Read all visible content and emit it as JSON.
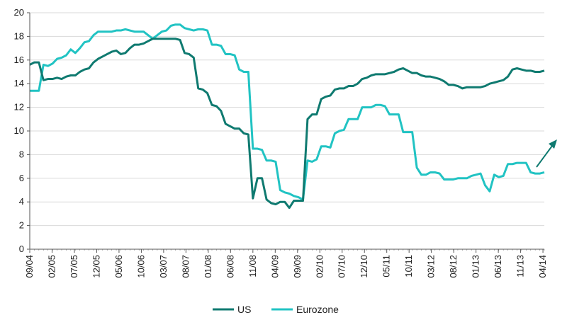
{
  "chart_data": {
    "type": "line",
    "title": "",
    "xlabel": "",
    "ylabel": "",
    "ylim": [
      0,
      20
    ],
    "yticks": [
      "0",
      "2",
      "4",
      "6",
      "8",
      "10",
      "12",
      "14",
      "16",
      "18",
      "20"
    ],
    "xticks": [
      "09/04",
      "02/05",
      "07/05",
      "12/05",
      "05/06",
      "10/06",
      "03/07",
      "08/07",
      "01/08",
      "06/08",
      "11/08",
      "04/09",
      "09/09",
      "02/10",
      "07/10",
      "12/10",
      "05/11",
      "10/11",
      "03/12",
      "08/12",
      "01/13",
      "06/13",
      "11/13",
      "04/14"
    ],
    "grid": "horizontal",
    "legend_position": "bottom",
    "colors": {
      "US": "#0f7a70",
      "Eurozone": "#21c3c3"
    },
    "series": [
      {
        "name": "US",
        "points": [
          [
            0,
            15.6
          ],
          [
            1,
            15.8
          ],
          [
            2,
            15.8
          ],
          [
            3,
            14.3
          ],
          [
            4,
            14.4
          ],
          [
            5,
            14.4
          ],
          [
            6,
            14.5
          ],
          [
            7,
            14.4
          ],
          [
            8,
            14.6
          ],
          [
            9,
            14.7
          ],
          [
            10,
            14.7
          ],
          [
            11,
            15.0
          ],
          [
            12,
            15.2
          ],
          [
            13,
            15.3
          ],
          [
            14,
            15.8
          ],
          [
            15,
            16.1
          ],
          [
            16,
            16.3
          ],
          [
            17,
            16.5
          ],
          [
            18,
            16.7
          ],
          [
            19,
            16.8
          ],
          [
            20,
            16.5
          ],
          [
            21,
            16.6
          ],
          [
            22,
            17.0
          ],
          [
            23,
            17.3
          ],
          [
            24,
            17.3
          ],
          [
            25,
            17.4
          ],
          [
            26,
            17.6
          ],
          [
            27,
            17.8
          ],
          [
            28,
            17.8
          ],
          [
            29,
            17.8
          ],
          [
            30,
            17.8
          ],
          [
            31,
            17.8
          ],
          [
            32,
            17.8
          ],
          [
            33,
            17.7
          ],
          [
            34,
            16.6
          ],
          [
            35,
            16.5
          ],
          [
            36,
            16.2
          ],
          [
            37,
            13.6
          ],
          [
            38,
            13.5
          ],
          [
            39,
            13.2
          ],
          [
            40,
            12.2
          ],
          [
            41,
            12.1
          ],
          [
            42,
            11.7
          ],
          [
            43,
            10.6
          ],
          [
            44,
            10.4
          ],
          [
            45,
            10.2
          ],
          [
            46,
            10.2
          ],
          [
            47,
            9.8
          ],
          [
            48,
            9.7
          ],
          [
            49,
            4.3
          ],
          [
            50,
            6.0
          ],
          [
            51,
            6.0
          ],
          [
            52,
            4.2
          ],
          [
            53,
            3.9
          ],
          [
            54,
            3.8
          ],
          [
            55,
            4.0
          ],
          [
            56,
            4.0
          ],
          [
            57,
            3.5
          ],
          [
            58,
            4.1
          ],
          [
            59,
            4.1
          ],
          [
            60,
            4.1
          ],
          [
            61,
            11.0
          ],
          [
            62,
            11.4
          ],
          [
            63,
            11.4
          ],
          [
            64,
            12.7
          ],
          [
            65,
            12.9
          ],
          [
            66,
            13.0
          ],
          [
            67,
            13.5
          ],
          [
            68,
            13.6
          ],
          [
            69,
            13.6
          ],
          [
            70,
            13.8
          ],
          [
            71,
            13.8
          ],
          [
            72,
            14.0
          ],
          [
            73,
            14.4
          ],
          [
            74,
            14.5
          ],
          [
            75,
            14.7
          ],
          [
            76,
            14.8
          ],
          [
            77,
            14.8
          ],
          [
            78,
            14.8
          ],
          [
            79,
            14.9
          ],
          [
            80,
            15.0
          ],
          [
            81,
            15.2
          ],
          [
            82,
            15.3
          ],
          [
            83,
            15.1
          ],
          [
            84,
            14.9
          ],
          [
            85,
            14.9
          ],
          [
            86,
            14.7
          ],
          [
            87,
            14.6
          ],
          [
            88,
            14.6
          ],
          [
            89,
            14.5
          ],
          [
            90,
            14.4
          ],
          [
            91,
            14.2
          ],
          [
            92,
            13.9
          ],
          [
            93,
            13.9
          ],
          [
            94,
            13.8
          ],
          [
            95,
            13.6
          ],
          [
            96,
            13.7
          ],
          [
            97,
            13.7
          ],
          [
            98,
            13.7
          ],
          [
            99,
            13.7
          ],
          [
            100,
            13.8
          ],
          [
            101,
            14.0
          ],
          [
            102,
            14.1
          ],
          [
            103,
            14.2
          ],
          [
            104,
            14.3
          ],
          [
            105,
            14.6
          ],
          [
            106,
            15.2
          ],
          [
            107,
            15.3
          ],
          [
            108,
            15.2
          ],
          [
            109,
            15.1
          ],
          [
            110,
            15.1
          ],
          [
            111,
            15.0
          ],
          [
            112,
            15.0
          ],
          [
            113,
            15.1
          ]
        ]
      },
      {
        "name": "Eurozone",
        "points": [
          [
            0,
            13.4
          ],
          [
            1,
            13.4
          ],
          [
            2,
            13.4
          ],
          [
            3,
            15.6
          ],
          [
            4,
            15.5
          ],
          [
            5,
            15.7
          ],
          [
            6,
            16.1
          ],
          [
            7,
            16.2
          ],
          [
            8,
            16.4
          ],
          [
            9,
            16.9
          ],
          [
            10,
            16.6
          ],
          [
            11,
            17.0
          ],
          [
            12,
            17.5
          ],
          [
            13,
            17.6
          ],
          [
            14,
            18.1
          ],
          [
            15,
            18.4
          ],
          [
            16,
            18.4
          ],
          [
            17,
            18.4
          ],
          [
            18,
            18.4
          ],
          [
            19,
            18.5
          ],
          [
            20,
            18.5
          ],
          [
            21,
            18.6
          ],
          [
            22,
            18.5
          ],
          [
            23,
            18.4
          ],
          [
            24,
            18.4
          ],
          [
            25,
            18.4
          ],
          [
            26,
            18.1
          ],
          [
            27,
            17.8
          ],
          [
            28,
            18.1
          ],
          [
            29,
            18.4
          ],
          [
            30,
            18.5
          ],
          [
            31,
            18.9
          ],
          [
            32,
            19.0
          ],
          [
            33,
            19.0
          ],
          [
            34,
            18.7
          ],
          [
            35,
            18.6
          ],
          [
            36,
            18.5
          ],
          [
            37,
            18.6
          ],
          [
            38,
            18.6
          ],
          [
            39,
            18.5
          ],
          [
            40,
            17.3
          ],
          [
            41,
            17.3
          ],
          [
            42,
            17.2
          ],
          [
            43,
            16.5
          ],
          [
            44,
            16.5
          ],
          [
            45,
            16.4
          ],
          [
            46,
            15.2
          ],
          [
            47,
            15.0
          ],
          [
            48,
            15.0
          ],
          [
            49,
            8.5
          ],
          [
            50,
            8.5
          ],
          [
            51,
            8.4
          ],
          [
            52,
            7.5
          ],
          [
            53,
            7.5
          ],
          [
            54,
            7.4
          ],
          [
            55,
            5.0
          ],
          [
            56,
            4.8
          ],
          [
            57,
            4.7
          ],
          [
            58,
            4.5
          ],
          [
            59,
            4.4
          ],
          [
            60,
            4.2
          ],
          [
            61,
            7.5
          ],
          [
            62,
            7.4
          ],
          [
            63,
            7.6
          ],
          [
            64,
            8.7
          ],
          [
            65,
            8.7
          ],
          [
            66,
            8.6
          ],
          [
            67,
            9.8
          ],
          [
            68,
            10.0
          ],
          [
            69,
            10.1
          ],
          [
            70,
            11.0
          ],
          [
            71,
            11.0
          ],
          [
            72,
            11.0
          ],
          [
            73,
            12.0
          ],
          [
            74,
            12.0
          ],
          [
            75,
            12.0
          ],
          [
            76,
            12.2
          ],
          [
            77,
            12.2
          ],
          [
            78,
            12.1
          ],
          [
            79,
            11.4
          ],
          [
            80,
            11.4
          ],
          [
            81,
            11.4
          ],
          [
            82,
            9.9
          ],
          [
            83,
            9.9
          ],
          [
            84,
            9.9
          ],
          [
            85,
            6.9
          ],
          [
            86,
            6.3
          ],
          [
            87,
            6.3
          ],
          [
            88,
            6.5
          ],
          [
            89,
            6.5
          ],
          [
            90,
            6.4
          ],
          [
            91,
            5.9
          ],
          [
            92,
            5.9
          ],
          [
            93,
            5.9
          ],
          [
            94,
            6.0
          ],
          [
            95,
            6.0
          ],
          [
            96,
            6.0
          ],
          [
            97,
            6.2
          ],
          [
            98,
            6.3
          ],
          [
            99,
            6.4
          ],
          [
            100,
            5.4
          ],
          [
            101,
            4.9
          ],
          [
            102,
            6.3
          ],
          [
            103,
            6.1
          ],
          [
            104,
            6.2
          ],
          [
            105,
            7.2
          ],
          [
            106,
            7.2
          ],
          [
            107,
            7.3
          ],
          [
            108,
            7.3
          ],
          [
            109,
            7.3
          ],
          [
            110,
            6.5
          ],
          [
            111,
            6.4
          ],
          [
            112,
            6.4
          ],
          [
            113,
            6.5
          ]
        ]
      }
    ],
    "annotation": "arrow pointing up-right at end of Eurozone series"
  }
}
